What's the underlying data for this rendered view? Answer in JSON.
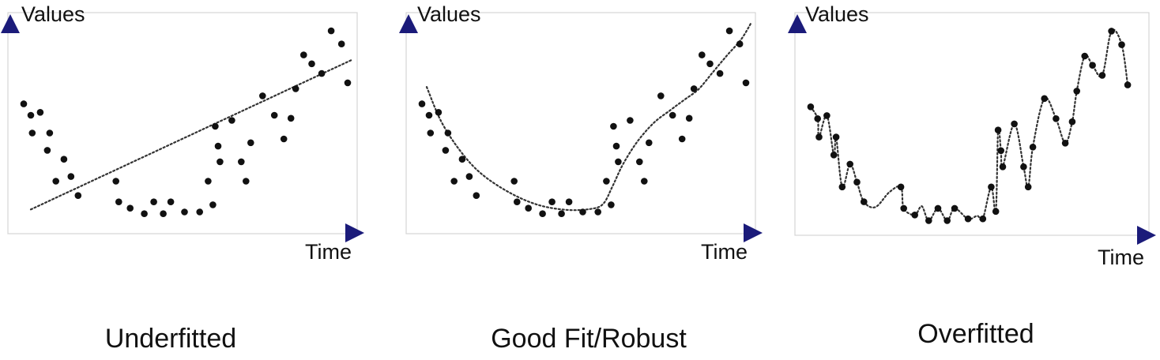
{
  "colors": {
    "axis": "#1b1b7a",
    "point": "#111111",
    "fit_line": "#333333",
    "frame": "#d6d6d6"
  },
  "panels": [
    {
      "id": "underfitted",
      "caption": "Underfitted",
      "y_axis_label": "Values",
      "x_axis_label": "Time",
      "fit_type": "linear",
      "points": [
        [
          0.5,
          20.5
        ],
        [
          2,
          17.8
        ],
        [
          4,
          18.5
        ],
        [
          2.3,
          13.6
        ],
        [
          6,
          13.6
        ],
        [
          5.5,
          9.5
        ],
        [
          9,
          7.4
        ],
        [
          10.5,
          3.3
        ],
        [
          7.3,
          2.2
        ],
        [
          12,
          -1.2
        ],
        [
          20,
          2.2
        ],
        [
          20.6,
          -2.7
        ],
        [
          23,
          -4.2
        ],
        [
          26,
          -5.5
        ],
        [
          28,
          -2.7
        ],
        [
          30,
          -5.5
        ],
        [
          31.6,
          -2.7
        ],
        [
          34.5,
          -5.1
        ],
        [
          37.7,
          -5.1
        ],
        [
          39.5,
          2.2
        ],
        [
          40.5,
          -3.4
        ],
        [
          41,
          15.2
        ],
        [
          41.6,
          10.5
        ],
        [
          42,
          6.8
        ],
        [
          44.5,
          16.6
        ],
        [
          46.5,
          6.8
        ],
        [
          47.5,
          2.2
        ],
        [
          48.5,
          11.3
        ],
        [
          51,
          22.4
        ],
        [
          53.5,
          17.8
        ],
        [
          55.5,
          12.2
        ],
        [
          57,
          17.1
        ],
        [
          58,
          24.1
        ],
        [
          59.7,
          32.1
        ],
        [
          61.4,
          30.0
        ],
        [
          63.5,
          27.7
        ],
        [
          65.5,
          37.8
        ],
        [
          67.7,
          34.7
        ],
        [
          69,
          25.5
        ]
      ],
      "line": [
        [
          2,
          -4.5
        ],
        [
          70,
          31.0
        ]
      ]
    },
    {
      "id": "good-fit",
      "caption": "Good Fit/Robust",
      "y_axis_label": "Values",
      "x_axis_label": "Time",
      "fit_type": "smooth",
      "points": [
        [
          0.5,
          20.5
        ],
        [
          2,
          17.8
        ],
        [
          4,
          18.5
        ],
        [
          2.3,
          13.6
        ],
        [
          6,
          13.6
        ],
        [
          5.5,
          9.5
        ],
        [
          9,
          7.4
        ],
        [
          10.5,
          3.3
        ],
        [
          7.3,
          2.2
        ],
        [
          12,
          -1.2
        ],
        [
          20,
          2.2
        ],
        [
          20.6,
          -2.7
        ],
        [
          23,
          -4.2
        ],
        [
          26,
          -5.5
        ],
        [
          28,
          -2.7
        ],
        [
          30,
          -5.5
        ],
        [
          31.6,
          -2.7
        ],
        [
          34.5,
          -5.1
        ],
        [
          37.7,
          -5.1
        ],
        [
          39.5,
          2.2
        ],
        [
          40.5,
          -3.4
        ],
        [
          41,
          15.2
        ],
        [
          41.6,
          10.5
        ],
        [
          42,
          6.8
        ],
        [
          44.5,
          16.6
        ],
        [
          46.5,
          6.8
        ],
        [
          47.5,
          2.2
        ],
        [
          48.5,
          11.3
        ],
        [
          51,
          22.4
        ],
        [
          53.5,
          17.8
        ],
        [
          55.5,
          12.2
        ],
        [
          57,
          17.1
        ],
        [
          58,
          24.1
        ],
        [
          59.7,
          32.1
        ],
        [
          61.4,
          30.0
        ],
        [
          63.5,
          27.7
        ],
        [
          65.5,
          37.8
        ],
        [
          67.7,
          34.7
        ],
        [
          69,
          25.5
        ]
      ],
      "line": [
        [
          1.5,
          24.5
        ],
        [
          4.5,
          16.5
        ],
        [
          8.5,
          9.5
        ],
        [
          13,
          4.0
        ],
        [
          19,
          -0.5
        ],
        [
          25,
          -3.4
        ],
        [
          31,
          -4.6
        ],
        [
          36,
          -4.4
        ],
        [
          38.8,
          -3.2
        ],
        [
          40.8,
          1.0
        ],
        [
          43,
          6.2
        ],
        [
          46,
          11.5
        ],
        [
          49.5,
          16.0
        ],
        [
          53,
          19.0
        ],
        [
          56,
          21.5
        ],
        [
          59,
          24.0
        ],
        [
          62,
          28.0
        ],
        [
          65,
          32.0
        ],
        [
          68,
          35.8
        ],
        [
          70,
          39.5
        ]
      ]
    },
    {
      "id": "overfitted",
      "caption": "Overfitted",
      "y_axis_label": "Values",
      "x_axis_label": "Time",
      "fit_type": "interpolating",
      "points": [
        [
          0.5,
          20.5
        ],
        [
          2,
          17.8
        ],
        [
          4,
          18.5
        ],
        [
          2.3,
          13.6
        ],
        [
          6,
          13.6
        ],
        [
          5.5,
          9.5
        ],
        [
          9,
          7.4
        ],
        [
          10.5,
          3.3
        ],
        [
          7.3,
          2.2
        ],
        [
          12,
          -1.2
        ],
        [
          20,
          2.2
        ],
        [
          20.6,
          -2.7
        ],
        [
          23,
          -4.2
        ],
        [
          26,
          -5.5
        ],
        [
          28,
          -2.7
        ],
        [
          30,
          -5.5
        ],
        [
          31.6,
          -2.7
        ],
        [
          34.5,
          -5.1
        ],
        [
          37.7,
          -5.1
        ],
        [
          39.5,
          2.2
        ],
        [
          40.5,
          -3.4
        ],
        [
          41,
          15.2
        ],
        [
          41.6,
          10.5
        ],
        [
          42,
          6.8
        ],
        [
          44.5,
          16.6
        ],
        [
          46.5,
          6.8
        ],
        [
          47.5,
          2.2
        ],
        [
          48.5,
          11.3
        ],
        [
          51,
          22.4
        ],
        [
          53.5,
          17.8
        ],
        [
          55.5,
          12.2
        ],
        [
          57,
          17.1
        ],
        [
          58,
          24.1
        ],
        [
          59.7,
          32.1
        ],
        [
          61.4,
          30.0
        ],
        [
          63.5,
          27.7
        ],
        [
          65.5,
          37.8
        ],
        [
          67.7,
          34.7
        ],
        [
          69,
          25.5
        ]
      ],
      "line": [
        [
          0.5,
          20.5
        ],
        [
          2,
          17.8
        ],
        [
          2.3,
          13.6
        ],
        [
          4,
          18.5
        ],
        [
          5.5,
          9.5
        ],
        [
          6,
          13.6
        ],
        [
          7.3,
          2.2
        ],
        [
          9,
          7.4
        ],
        [
          10.5,
          3.3
        ],
        [
          12,
          -1.2
        ],
        [
          14.5,
          -2.4
        ],
        [
          17.5,
          1.0
        ],
        [
          20,
          2.2
        ],
        [
          20.6,
          -2.7
        ],
        [
          23,
          -4.2
        ],
        [
          24.5,
          -2.2
        ],
        [
          26,
          -5.5
        ],
        [
          28,
          -2.7
        ],
        [
          30,
          -5.5
        ],
        [
          31.6,
          -2.7
        ],
        [
          34.5,
          -5.1
        ],
        [
          36.5,
          -4.4
        ],
        [
          37.7,
          -5.1
        ],
        [
          39.5,
          2.2
        ],
        [
          40.5,
          -3.4
        ],
        [
          41,
          15.2
        ],
        [
          41.6,
          10.5
        ],
        [
          42,
          6.8
        ],
        [
          44.5,
          16.6
        ],
        [
          46.5,
          6.8
        ],
        [
          47.5,
          2.2
        ],
        [
          48.5,
          11.3
        ],
        [
          51,
          22.4
        ],
        [
          53.5,
          17.8
        ],
        [
          55.5,
          12.2
        ],
        [
          57,
          17.1
        ],
        [
          58,
          24.1
        ],
        [
          59.7,
          32.1
        ],
        [
          61.4,
          30.0
        ],
        [
          63.5,
          27.7
        ],
        [
          65.5,
          37.8
        ],
        [
          67.7,
          34.7
        ],
        [
          69,
          25.5
        ]
      ]
    }
  ]
}
